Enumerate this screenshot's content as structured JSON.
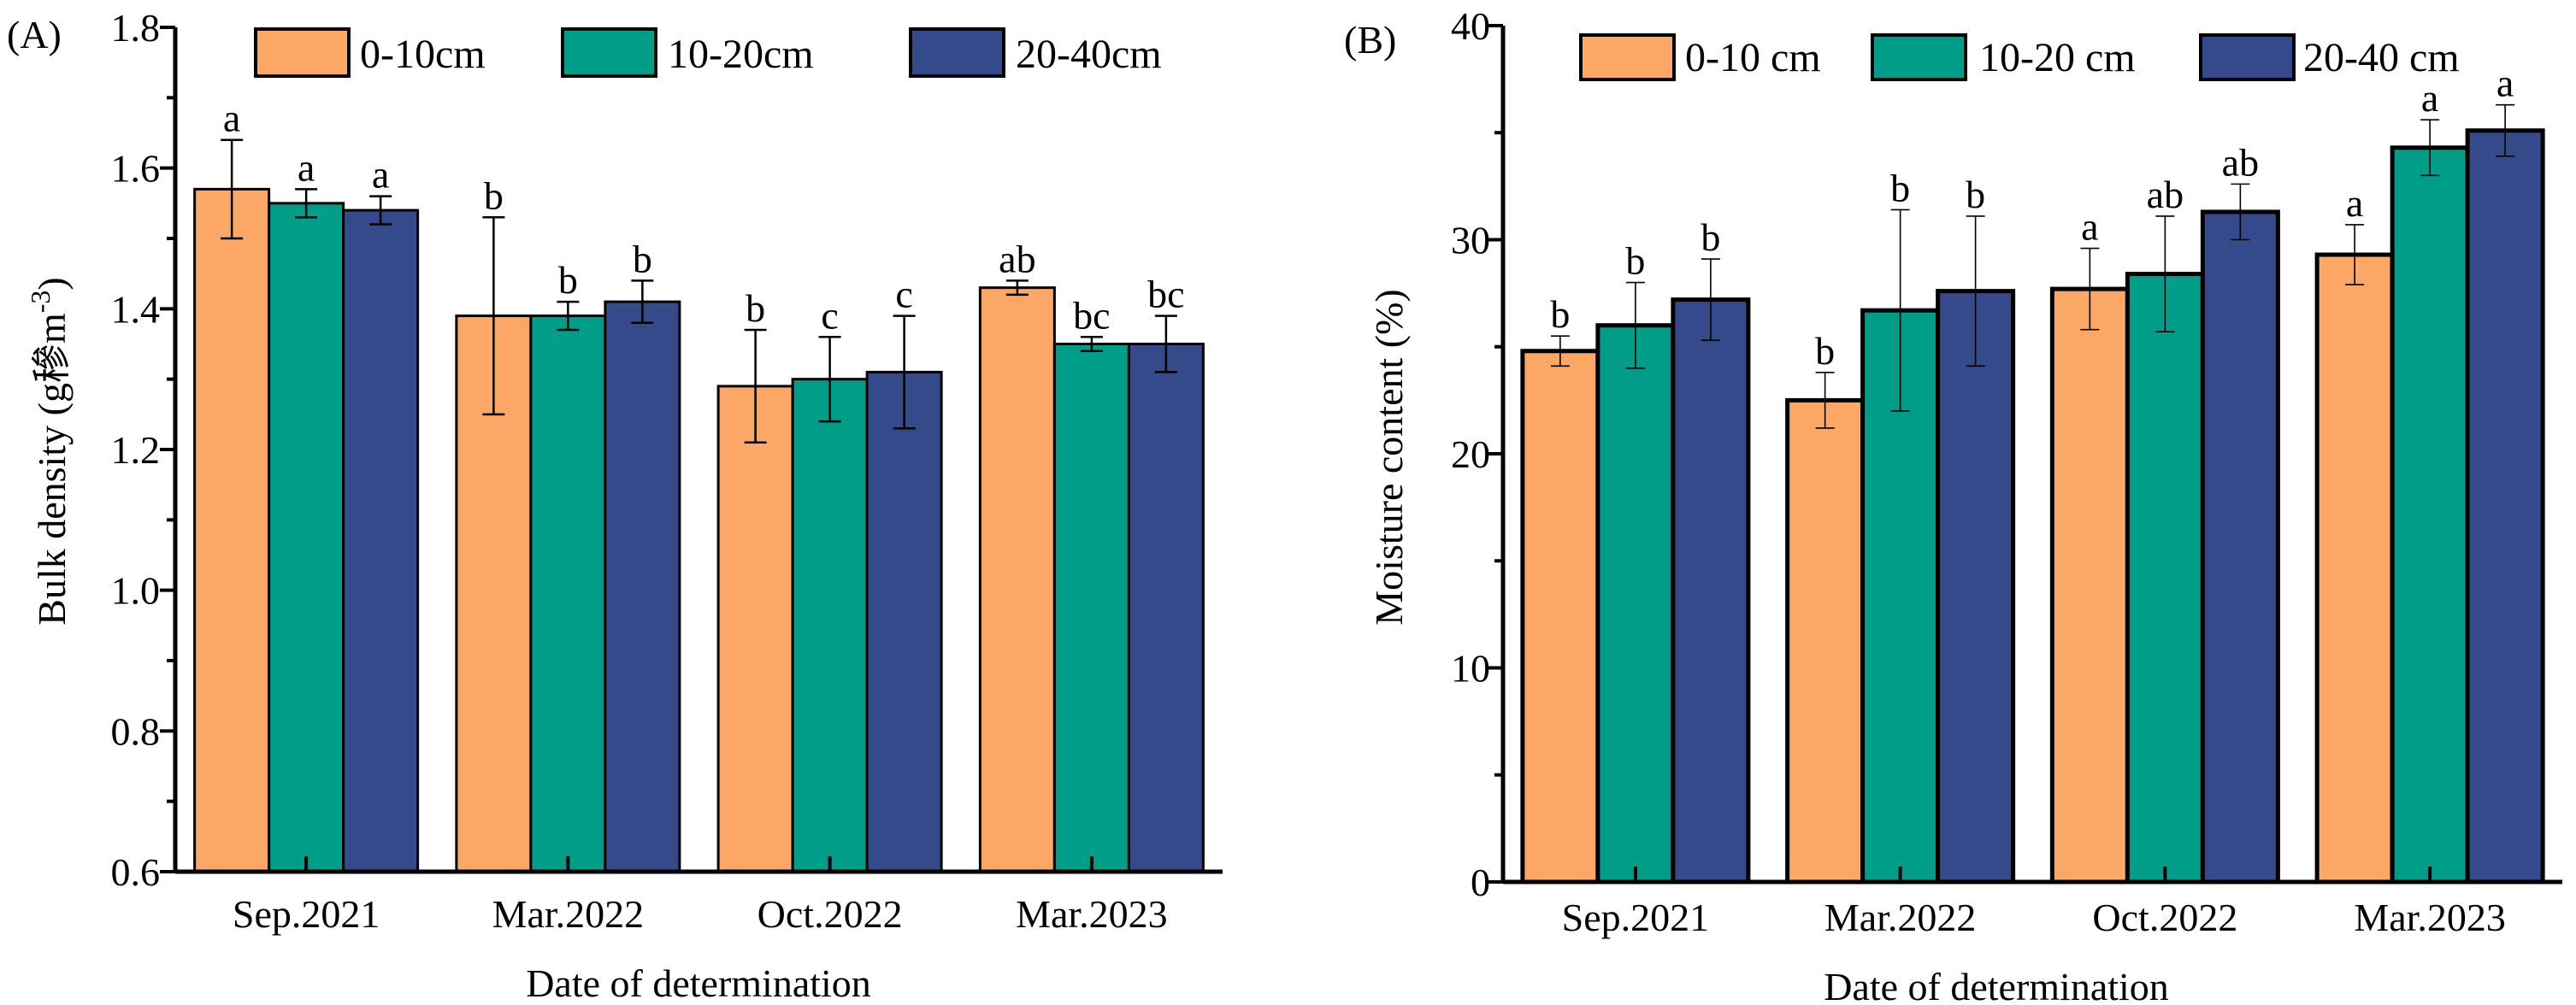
{
  "colors": {
    "s0": "#FDA766",
    "s1": "#009E88",
    "s2": "#344A8B"
  },
  "chart_data": [
    {
      "type": "bar",
      "panel_label": "(A)",
      "title": "",
      "xlabel": "Date of determination",
      "ylabel": "Bulk density (g穇m",
      "ylabel_sup": "-3",
      "ylabel_end": ")",
      "categories": [
        "Sep.2021",
        "Mar.2022",
        "Oct.2022",
        "Mar.2023"
      ],
      "ylim": [
        0.6,
        1.8
      ],
      "yticks": [
        "0.6",
        "0.8",
        "1.0",
        "1.2",
        "1.4",
        "1.6",
        "1.8"
      ],
      "ytick_values": [
        0.6,
        0.8,
        1.0,
        1.2,
        1.4,
        1.6,
        1.8
      ],
      "minor_step": 0.1,
      "legend_position": "top",
      "series": [
        {
          "name": "0-10cm",
          "values": [
            1.57,
            1.39,
            1.29,
            1.43
          ],
          "errors": [
            0.07,
            0.14,
            0.08,
            0.01
          ],
          "letters": [
            "a",
            "b",
            "b",
            "ab"
          ]
        },
        {
          "name": "10-20cm",
          "values": [
            1.55,
            1.39,
            1.3,
            1.35
          ],
          "errors": [
            0.02,
            0.02,
            0.06,
            0.01
          ],
          "letters": [
            "a",
            "b",
            "c",
            "bc"
          ]
        },
        {
          "name": "20-40cm",
          "values": [
            1.54,
            1.41,
            1.31,
            1.35
          ],
          "errors": [
            0.02,
            0.03,
            0.08,
            0.04
          ],
          "letters": [
            "a",
            "b",
            "c",
            "bc"
          ]
        }
      ]
    },
    {
      "type": "bar",
      "panel_label": "(B)",
      "title": "",
      "xlabel": "Date of determination",
      "ylabel": "Moisture content (%)",
      "categories": [
        "Sep.2021",
        "Mar.2022",
        "Oct.2022",
        "Mar.2023"
      ],
      "ylim": [
        0,
        40
      ],
      "yticks": [
        "0",
        "10",
        "20",
        "30",
        "40"
      ],
      "ytick_values": [
        0,
        10,
        20,
        30,
        40
      ],
      "minor_step": 5,
      "legend_position": "top",
      "series": [
        {
          "name": "0-10 cm",
          "values": [
            24.8,
            22.5,
            27.7,
            29.3
          ],
          "errors": [
            0.7,
            1.3,
            1.9,
            1.4
          ],
          "letters": [
            "b",
            "b",
            "a",
            "a"
          ]
        },
        {
          "name": "10-20 cm",
          "values": [
            26.0,
            26.7,
            28.4,
            34.3
          ],
          "errors": [
            2.0,
            4.7,
            2.7,
            1.3
          ],
          "letters": [
            "b",
            "b",
            "ab",
            "a"
          ]
        },
        {
          "name": "20-40 cm",
          "values": [
            27.2,
            27.6,
            31.3,
            35.1
          ],
          "errors": [
            1.9,
            3.5,
            1.3,
            1.2
          ],
          "letters": [
            "b",
            "b",
            "ab",
            "a"
          ]
        }
      ]
    }
  ]
}
